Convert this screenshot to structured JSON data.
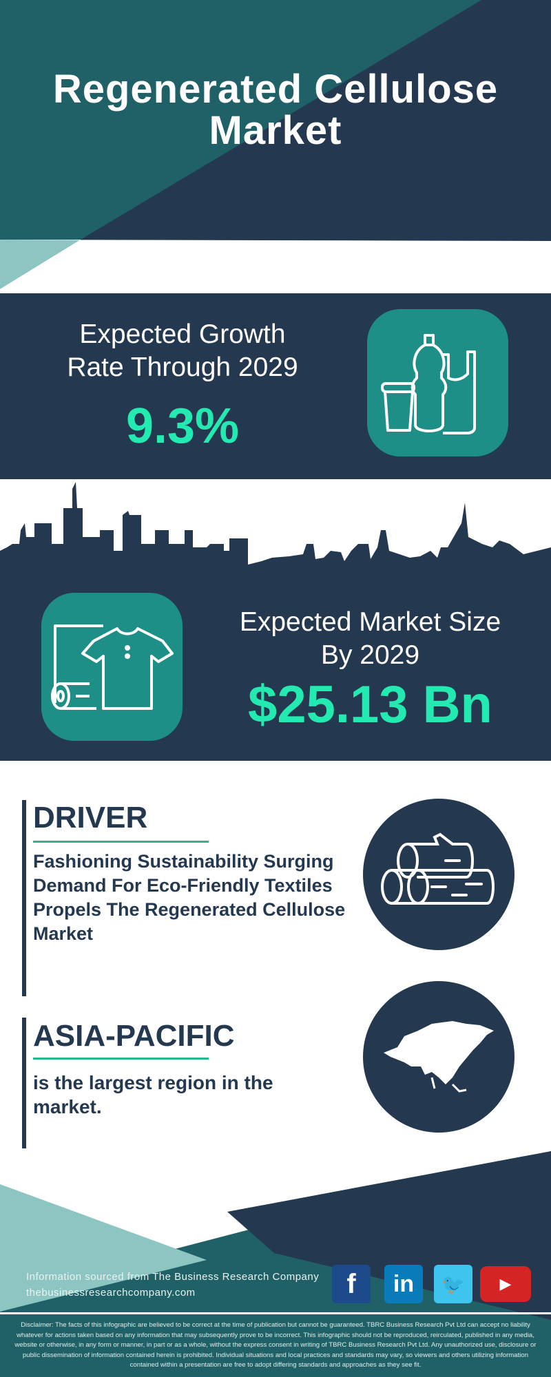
{
  "title": {
    "line1": "Regenerated Cellulose",
    "line2": "Market"
  },
  "growth": {
    "label_line1": "Expected Growth",
    "label_line2": "Rate Through 2029",
    "value": "9.3%",
    "icon": "bottle-cup-bag-icon"
  },
  "market": {
    "label_line1": "Expected Market Size",
    "label_line2": "By 2029",
    "value": "$25.13 Bn",
    "icon": "fabric-roll-shirt-icon"
  },
  "driver": {
    "heading": "DRIVER",
    "text": "Fashioning Sustainability Surging Demand For Eco-Friendly Textiles Propels The Regenerated Cellulose Market",
    "icon": "logs-icon"
  },
  "region": {
    "heading": "ASIA-PACIFIC",
    "text": "is the largest region in the market.",
    "icon": "asia-map-icon"
  },
  "footer": {
    "source": "Information sourced from The Business Research Company",
    "url": "thebusinessresearchcompany.com",
    "social": [
      {
        "name": "facebook",
        "glyph": "f",
        "color": "#1c4a8a"
      },
      {
        "name": "linkedin",
        "glyph": "in",
        "color": "#0a7bba"
      },
      {
        "name": "twitter",
        "glyph": "🐦",
        "color": "#3ec4ee"
      },
      {
        "name": "youtube",
        "glyph": "▶",
        "color": "#d42424"
      }
    ],
    "disclaimer": "Disclaimer: The facts of this infographic are believed to be correct at the time of publication but cannot be guaranteed. TBRC Business Research Pvt Ltd can accept no liability whatever for actions taken based on any information that may subsequently prove to be incorrect. This infographic should not be reproduced, reirculated, published in any media, website or otherwise, in any form or manner, in part or as a whole, without the express consent in writing of TBRC Business Research Pvt Ltd. Any unauthorized use, disclosure or public dissemination of information contained herein is prohibited. Individual situations and local practices and standards may vary, so viewers and others utilizing information contained within a presentation are free to adopt differing standards and approaches as they see fit."
  },
  "colors": {
    "navy": "#243850",
    "teal": "#1f6167",
    "light_teal": "#8cc5c1",
    "accent": "#23eab0",
    "icon_bg": "#1d8f86"
  }
}
